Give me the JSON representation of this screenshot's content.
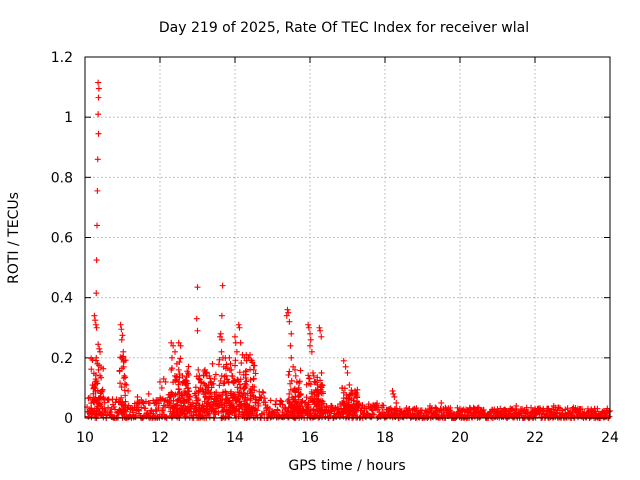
{
  "chart_data": {
    "type": "scatter",
    "title": "Day 219 of 2025, Rate Of TEC Index for receiver wlal",
    "xlabel": "GPS time / hours",
    "ylabel": "ROTI / TECUs",
    "xlim": [
      10,
      24
    ],
    "ylim": [
      0,
      1.2
    ],
    "xticks": [
      10,
      12,
      14,
      16,
      18,
      20,
      22,
      24
    ],
    "xtick_labels": [
      "10",
      "12",
      "14",
      "16",
      "18",
      "20",
      "22",
      "24"
    ],
    "yticks": [
      0,
      0.2,
      0.4,
      0.6,
      0.8,
      1,
      1.2
    ],
    "ytick_labels": [
      "0",
      "0.2",
      "0.4",
      "0.6",
      "0.8",
      "1",
      "1.2"
    ],
    "grid": true,
    "marker": "+",
    "color": "#ff0000",
    "series": [
      {
        "name": "ROTI",
        "points": [
          [
            10.35,
            1.115
          ],
          [
            10.37,
            1.095
          ],
          [
            10.36,
            1.065
          ],
          [
            10.35,
            1.01
          ],
          [
            10.36,
            0.945
          ],
          [
            10.34,
            0.86
          ],
          [
            10.33,
            0.755
          ],
          [
            10.32,
            0.64
          ],
          [
            10.31,
            0.525
          ],
          [
            10.3,
            0.415
          ],
          [
            10.25,
            0.34
          ],
          [
            10.27,
            0.325
          ],
          [
            10.29,
            0.31
          ],
          [
            10.31,
            0.3
          ],
          [
            10.35,
            0.245
          ],
          [
            10.38,
            0.23
          ],
          [
            10.4,
            0.22
          ],
          [
            10.3,
            0.2
          ],
          [
            10.33,
            0.18
          ],
          [
            10.36,
            0.16
          ],
          [
            10.4,
            0.14
          ],
          [
            10.28,
            0.12
          ],
          [
            10.25,
            0.1
          ],
          [
            10.45,
            0.09
          ],
          [
            10.2,
            0.06
          ],
          [
            10.95,
            0.31
          ],
          [
            10.97,
            0.295
          ],
          [
            11.0,
            0.275
          ],
          [
            10.98,
            0.26
          ],
          [
            11.02,
            0.22
          ],
          [
            11.0,
            0.2
          ],
          [
            11.03,
            0.17
          ],
          [
            11.05,
            0.14
          ],
          [
            11.1,
            0.11
          ],
          [
            11.15,
            0.09
          ],
          [
            11.4,
            0.07
          ],
          [
            11.7,
            0.08
          ],
          [
            11.9,
            0.06
          ],
          [
            12.0,
            0.12
          ],
          [
            12.05,
            0.1
          ],
          [
            12.1,
            0.13
          ],
          [
            12.15,
            0.12
          ],
          [
            12.3,
            0.25
          ],
          [
            12.35,
            0.24
          ],
          [
            12.4,
            0.22
          ],
          [
            12.32,
            0.2
          ],
          [
            12.45,
            0.18
          ],
          [
            12.5,
            0.25
          ],
          [
            12.55,
            0.24
          ],
          [
            12.5,
            0.16
          ],
          [
            12.6,
            0.14
          ],
          [
            12.65,
            0.12
          ],
          [
            12.7,
            0.11
          ],
          [
            12.75,
            0.1
          ],
          [
            12.3,
            0.16
          ],
          [
            12.4,
            0.14
          ],
          [
            13.0,
            0.435
          ],
          [
            12.98,
            0.33
          ],
          [
            13.0,
            0.29
          ],
          [
            13.02,
            0.16
          ],
          [
            13.05,
            0.14
          ],
          [
            13.1,
            0.12
          ],
          [
            13.2,
            0.16
          ],
          [
            13.25,
            0.14
          ],
          [
            13.3,
            0.11
          ],
          [
            13.35,
            0.12
          ],
          [
            13.4,
            0.18
          ],
          [
            13.45,
            0.13
          ],
          [
            13.6,
            0.27
          ],
          [
            13.62,
            0.28
          ],
          [
            13.65,
            0.26
          ],
          [
            13.64,
            0.22
          ],
          [
            13.68,
            0.2
          ],
          [
            13.67,
            0.44
          ],
          [
            13.65,
            0.34
          ],
          [
            13.7,
            0.17
          ],
          [
            13.85,
            0.2
          ],
          [
            13.88,
            0.18
          ],
          [
            13.9,
            0.16
          ],
          [
            13.92,
            0.14
          ],
          [
            13.95,
            0.12
          ],
          [
            14.0,
            0.27
          ],
          [
            14.02,
            0.25
          ],
          [
            14.05,
            0.22
          ],
          [
            14.1,
            0.31
          ],
          [
            14.12,
            0.3
          ],
          [
            14.15,
            0.25
          ],
          [
            14.2,
            0.21
          ],
          [
            14.25,
            0.2
          ],
          [
            14.3,
            0.21
          ],
          [
            14.35,
            0.2
          ],
          [
            14.4,
            0.21
          ],
          [
            14.45,
            0.19
          ],
          [
            14.5,
            0.16
          ],
          [
            14.3,
            0.11
          ],
          [
            14.4,
            0.09
          ],
          [
            14.2,
            0.07
          ],
          [
            15.4,
            0.36
          ],
          [
            15.42,
            0.35
          ],
          [
            15.38,
            0.34
          ],
          [
            15.45,
            0.32
          ],
          [
            15.5,
            0.28
          ],
          [
            15.48,
            0.24
          ],
          [
            15.5,
            0.2
          ],
          [
            15.55,
            0.17
          ],
          [
            15.6,
            0.16
          ],
          [
            15.62,
            0.14
          ],
          [
            15.65,
            0.12
          ],
          [
            15.7,
            0.1
          ],
          [
            15.75,
            0.08
          ],
          [
            15.95,
            0.31
          ],
          [
            15.97,
            0.3
          ],
          [
            16.0,
            0.28
          ],
          [
            16.02,
            0.26
          ],
          [
            16.0,
            0.24
          ],
          [
            16.05,
            0.22
          ],
          [
            16.08,
            0.15
          ],
          [
            16.1,
            0.14
          ],
          [
            16.15,
            0.12
          ],
          [
            16.2,
            0.11
          ],
          [
            16.25,
            0.3
          ],
          [
            16.27,
            0.29
          ],
          [
            16.3,
            0.27
          ],
          [
            16.9,
            0.19
          ],
          [
            16.95,
            0.17
          ],
          [
            17.0,
            0.15
          ],
          [
            17.05,
            0.11
          ],
          [
            17.1,
            0.08
          ],
          [
            17.2,
            0.09
          ],
          [
            17.25,
            0.07
          ],
          [
            18.2,
            0.09
          ],
          [
            18.22,
            0.08
          ],
          [
            18.25,
            0.07
          ],
          [
            18.3,
            0.05
          ],
          [
            19.2,
            0.04
          ],
          [
            19.5,
            0.05
          ],
          [
            20.0,
            0.03
          ],
          [
            20.5,
            0.035
          ],
          [
            21.0,
            0.03
          ],
          [
            21.5,
            0.04
          ],
          [
            22.0,
            0.03
          ],
          [
            22.5,
            0.04
          ],
          [
            23.0,
            0.03
          ],
          [
            23.5,
            0.025
          ],
          [
            23.9,
            0.02
          ]
        ],
        "baseline_ranges": [
          {
            "x": [
              10.05,
              11.0
            ],
            "y": [
              0.0,
              0.07
            ]
          },
          {
            "x": [
              11.0,
              12.0
            ],
            "y": [
              0.0,
              0.06
            ]
          },
          {
            "x": [
              12.0,
              14.8
            ],
            "y": [
              0.0,
              0.09
            ]
          },
          {
            "x": [
              14.8,
              16.5
            ],
            "y": [
              0.0,
              0.06
            ]
          },
          {
            "x": [
              16.5,
              18.0
            ],
            "y": [
              0.0,
              0.05
            ]
          },
          {
            "x": [
              18.0,
              24.0
            ],
            "y": [
              0.0,
              0.035
            ]
          }
        ],
        "burst_ranges": [
          {
            "x": [
              10.15,
              10.5
            ],
            "y": [
              0.02,
              0.25
            ]
          },
          {
            "x": [
              10.9,
              11.1
            ],
            "y": [
              0.02,
              0.22
            ]
          },
          {
            "x": [
              12.25,
              12.8
            ],
            "y": [
              0.02,
              0.2
            ]
          },
          {
            "x": [
              12.95,
              13.5
            ],
            "y": [
              0.02,
              0.16
            ]
          },
          {
            "x": [
              13.55,
              14.55
            ],
            "y": [
              0.02,
              0.2
            ]
          },
          {
            "x": [
              15.4,
              15.8
            ],
            "y": [
              0.02,
              0.16
            ]
          },
          {
            "x": [
              15.9,
              16.35
            ],
            "y": [
              0.02,
              0.15
            ]
          },
          {
            "x": [
              16.85,
              17.3
            ],
            "y": [
              0.02,
              0.1
            ]
          }
        ]
      }
    ]
  }
}
